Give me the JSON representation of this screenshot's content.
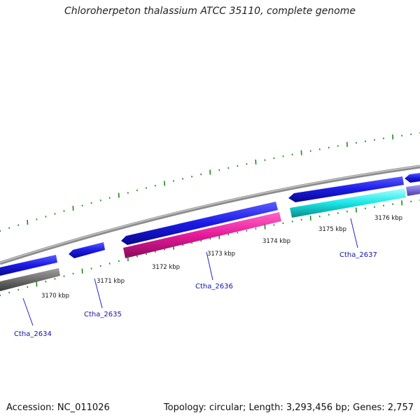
{
  "title": "Chloroherpeton thalassium ATCC 35110, complete genome",
  "footer": {
    "accession": "Accession: NC_011026",
    "summary": "Topology: circular; Length: 3,293,456 bp; Genes: 2,757"
  },
  "scale": {
    "unit": "kbp",
    "ticks": [
      {
        "pos": 3170,
        "label": "3170 kbp"
      },
      {
        "pos": 3171,
        "label": "3171 kbp"
      },
      {
        "pos": 3172,
        "label": "3172 kbp"
      },
      {
        "pos": 3173,
        "label": "3173 kbp"
      },
      {
        "pos": 3174,
        "label": "3174 kbp"
      },
      {
        "pos": 3175,
        "label": "3175 kbp"
      },
      {
        "pos": 3176,
        "label": "3176 kbp"
      }
    ]
  },
  "genes": [
    {
      "name": "Ctha_2634"
    },
    {
      "name": "Ctha_2635"
    },
    {
      "name": "Ctha_2636"
    },
    {
      "name": "Ctha_2637"
    }
  ],
  "colors": {
    "backbone": "#8c8c8c",
    "forward": "#1a1ae6",
    "gray_feature": "#6e6e6e",
    "magenta_feature": "#e6199a",
    "cyan_feature": "#19e6e6",
    "purple_feature": "#7a6cd6",
    "tick": "#1a8a1a",
    "leader": "#2222cc"
  }
}
